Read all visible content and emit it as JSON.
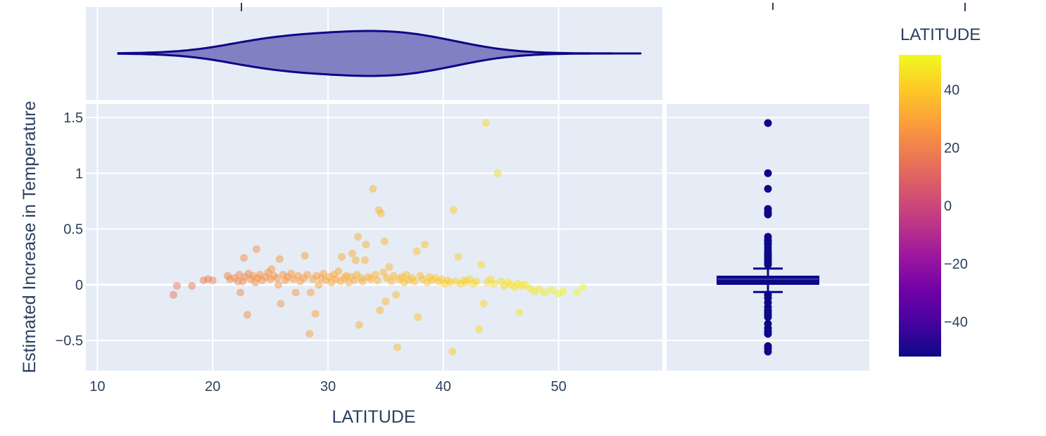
{
  "chart_data": {
    "type": "scatter",
    "xlabel": "LATITUDE",
    "ylabel": "Estimated Increase in Temperature",
    "xlim": [
      9,
      59
    ],
    "ylim": [
      -0.77,
      1.62
    ],
    "x_ticks": [
      10,
      20,
      30,
      40,
      50
    ],
    "y_ticks": [
      -0.5,
      0,
      0.5,
      1,
      1.5
    ],
    "y_tick_labels": [
      "−0.5",
      "0",
      "0.5",
      "1",
      "1.5"
    ],
    "grid": true,
    "marker_opacity": 0.5,
    "points": [
      {
        "x": 16.6,
        "y": -0.09
      },
      {
        "x": 16.9,
        "y": -0.01
      },
      {
        "x": 18.2,
        "y": -0.01
      },
      {
        "x": 19.2,
        "y": 0.04
      },
      {
        "x": 19.6,
        "y": 0.05
      },
      {
        "x": 20.0,
        "y": 0.04
      },
      {
        "x": 21.3,
        "y": 0.08
      },
      {
        "x": 21.5,
        "y": 0.05
      },
      {
        "x": 21.9,
        "y": 0.06
      },
      {
        "x": 22.2,
        "y": 0.03
      },
      {
        "x": 22.3,
        "y": 0.09
      },
      {
        "x": 22.4,
        "y": -0.07
      },
      {
        "x": 22.6,
        "y": 0.03
      },
      {
        "x": 22.7,
        "y": 0.24
      },
      {
        "x": 22.8,
        "y": 0.07
      },
      {
        "x": 23.0,
        "y": -0.27
      },
      {
        "x": 23.1,
        "y": 0.1
      },
      {
        "x": 23.3,
        "y": 0.05
      },
      {
        "x": 23.5,
        "y": 0.08
      },
      {
        "x": 23.7,
        "y": 0.02
      },
      {
        "x": 23.8,
        "y": 0.32
      },
      {
        "x": 23.9,
        "y": 0.06
      },
      {
        "x": 24.1,
        "y": 0.09
      },
      {
        "x": 24.3,
        "y": 0.04
      },
      {
        "x": 24.6,
        "y": 0.07
      },
      {
        "x": 24.8,
        "y": 0.11
      },
      {
        "x": 25.0,
        "y": 0.05
      },
      {
        "x": 25.1,
        "y": 0.14
      },
      {
        "x": 25.3,
        "y": 0.08
      },
      {
        "x": 25.6,
        "y": 0.06
      },
      {
        "x": 25.7,
        "y": 0.0
      },
      {
        "x": 25.8,
        "y": 0.23
      },
      {
        "x": 25.9,
        "y": -0.17
      },
      {
        "x": 26.1,
        "y": 0.09
      },
      {
        "x": 26.3,
        "y": 0.04
      },
      {
        "x": 26.5,
        "y": 0.07
      },
      {
        "x": 26.8,
        "y": 0.1
      },
      {
        "x": 27.0,
        "y": 0.05
      },
      {
        "x": 27.2,
        "y": -0.07
      },
      {
        "x": 27.4,
        "y": 0.08
      },
      {
        "x": 27.6,
        "y": 0.03
      },
      {
        "x": 27.9,
        "y": 0.06
      },
      {
        "x": 28.0,
        "y": 0.26
      },
      {
        "x": 28.2,
        "y": 0.09
      },
      {
        "x": 28.4,
        "y": -0.44
      },
      {
        "x": 28.5,
        "y": -0.07
      },
      {
        "x": 28.7,
        "y": 0.05
      },
      {
        "x": 28.9,
        "y": -0.26
      },
      {
        "x": 29.0,
        "y": 0.08
      },
      {
        "x": 29.2,
        "y": 0.0
      },
      {
        "x": 29.4,
        "y": 0.06
      },
      {
        "x": 29.6,
        "y": 0.1
      },
      {
        "x": 29.8,
        "y": 0.04
      },
      {
        "x": 30.1,
        "y": 0.07
      },
      {
        "x": 30.3,
        "y": 0.02
      },
      {
        "x": 30.5,
        "y": 0.09
      },
      {
        "x": 30.7,
        "y": 0.05
      },
      {
        "x": 30.9,
        "y": 0.12
      },
      {
        "x": 31.1,
        "y": 0.03
      },
      {
        "x": 31.2,
        "y": 0.25
      },
      {
        "x": 31.4,
        "y": 0.06
      },
      {
        "x": 31.6,
        "y": 0.08
      },
      {
        "x": 31.8,
        "y": 0.02
      },
      {
        "x": 32.0,
        "y": 0.07
      },
      {
        "x": 32.1,
        "y": 0.28
      },
      {
        "x": 32.3,
        "y": 0.04
      },
      {
        "x": 32.4,
        "y": 0.22
      },
      {
        "x": 32.5,
        "y": 0.09
      },
      {
        "x": 32.6,
        "y": 0.43
      },
      {
        "x": 32.7,
        "y": -0.36
      },
      {
        "x": 32.9,
        "y": 0.06
      },
      {
        "x": 33.0,
        "y": 0.03
      },
      {
        "x": 33.2,
        "y": 0.22
      },
      {
        "x": 33.3,
        "y": 0.36
      },
      {
        "x": 33.5,
        "y": 0.07
      },
      {
        "x": 33.7,
        "y": 0.05
      },
      {
        "x": 33.9,
        "y": 0.86
      },
      {
        "x": 34.1,
        "y": 0.09
      },
      {
        "x": 34.3,
        "y": 0.04
      },
      {
        "x": 34.4,
        "y": 0.67
      },
      {
        "x": 34.5,
        "y": -0.23
      },
      {
        "x": 34.6,
        "y": 0.64
      },
      {
        "x": 34.8,
        "y": 0.11
      },
      {
        "x": 34.9,
        "y": 0.39
      },
      {
        "x": 35.0,
        "y": -0.15
      },
      {
        "x": 35.1,
        "y": 0.06
      },
      {
        "x": 35.3,
        "y": 0.16
      },
      {
        "x": 35.5,
        "y": 0.03
      },
      {
        "x": 35.7,
        "y": 0.08
      },
      {
        "x": 35.9,
        "y": -0.09
      },
      {
        "x": 36.0,
        "y": -0.56
      },
      {
        "x": 36.2,
        "y": 0.05
      },
      {
        "x": 36.4,
        "y": 0.07
      },
      {
        "x": 36.6,
        "y": 0.02
      },
      {
        "x": 36.8,
        "y": 0.09
      },
      {
        "x": 37.0,
        "y": 0.04
      },
      {
        "x": 37.3,
        "y": 0.06
      },
      {
        "x": 37.5,
        "y": 0.03
      },
      {
        "x": 37.7,
        "y": 0.3
      },
      {
        "x": 37.8,
        "y": -0.29
      },
      {
        "x": 38.0,
        "y": 0.08
      },
      {
        "x": 38.2,
        "y": 0.05
      },
      {
        "x": 38.4,
        "y": 0.36
      },
      {
        "x": 38.6,
        "y": 0.02
      },
      {
        "x": 38.8,
        "y": 0.07
      },
      {
        "x": 39.0,
        "y": 0.04
      },
      {
        "x": 39.3,
        "y": 0.06
      },
      {
        "x": 39.6,
        "y": 0.03
      },
      {
        "x": 39.9,
        "y": 0.05
      },
      {
        "x": 40.1,
        "y": 0.01
      },
      {
        "x": 40.4,
        "y": 0.04
      },
      {
        "x": 40.6,
        "y": 0.02
      },
      {
        "x": 40.9,
        "y": 0.67
      },
      {
        "x": 40.8,
        "y": -0.6
      },
      {
        "x": 41.1,
        "y": 0.03
      },
      {
        "x": 41.3,
        "y": 0.25
      },
      {
        "x": 41.5,
        "y": 0.01
      },
      {
        "x": 41.8,
        "y": 0.04
      },
      {
        "x": 42.0,
        "y": 0.02
      },
      {
        "x": 42.3,
        "y": 0.05
      },
      {
        "x": 42.6,
        "y": 0.01
      },
      {
        "x": 42.9,
        "y": 0.03
      },
      {
        "x": 43.1,
        "y": -0.4
      },
      {
        "x": 43.3,
        "y": 0.18
      },
      {
        "x": 43.5,
        "y": -0.17
      },
      {
        "x": 43.7,
        "y": 1.45
      },
      {
        "x": 43.8,
        "y": 0.02
      },
      {
        "x": 44.1,
        "y": 0.05
      },
      {
        "x": 44.4,
        "y": 0.01
      },
      {
        "x": 44.7,
        "y": 1.0
      },
      {
        "x": 45.0,
        "y": 0.03
      },
      {
        "x": 45.3,
        "y": -0.01
      },
      {
        "x": 45.6,
        "y": 0.02
      },
      {
        "x": 45.9,
        "y": 0.0
      },
      {
        "x": 46.2,
        "y": -0.02
      },
      {
        "x": 46.5,
        "y": 0.01
      },
      {
        "x": 46.6,
        "y": -0.25
      },
      {
        "x": 46.8,
        "y": -0.01
      },
      {
        "x": 47.1,
        "y": 0.0
      },
      {
        "x": 47.5,
        "y": -0.03
      },
      {
        "x": 47.9,
        "y": -0.06
      },
      {
        "x": 48.3,
        "y": -0.04
      },
      {
        "x": 48.8,
        "y": -0.07
      },
      {
        "x": 49.4,
        "y": -0.05
      },
      {
        "x": 50.0,
        "y": -0.08
      },
      {
        "x": 50.4,
        "y": -0.06
      },
      {
        "x": 51.6,
        "y": -0.07
      },
      {
        "x": 52.1,
        "y": -0.02
      }
    ],
    "marginal_x": {
      "type": "violin",
      "orientation": "horizontal",
      "x_min": 11.8,
      "x_max": 57.1,
      "fill_color": "#7a7ac0",
      "line_color": "#0d0887"
    },
    "marginal_y": {
      "type": "box",
      "fill_color": "#0d0887",
      "q1": 0.005,
      "median": 0.05,
      "q3": 0.075,
      "whisker_low": -0.065,
      "whisker_high": 0.145,
      "outliers": [
        1.45,
        1.0,
        0.86,
        0.68,
        0.65,
        0.63,
        0.43,
        0.4,
        0.38,
        0.36,
        0.33,
        0.3,
        0.28,
        0.26,
        0.24,
        0.22,
        0.2,
        0.18,
        -0.09,
        -0.12,
        -0.16,
        -0.2,
        -0.23,
        -0.25,
        -0.27,
        -0.29,
        -0.35,
        -0.39,
        -0.42,
        -0.44,
        -0.55,
        -0.57,
        -0.6
      ]
    },
    "colorbar": {
      "title": "LATITUDE",
      "range": [
        -52,
        52
      ],
      "ticks": [
        40,
        20,
        0,
        -20,
        -40
      ],
      "tick_labels": [
        "40",
        "20",
        "0",
        "−20",
        "−40"
      ],
      "colors": [
        "#0d0887",
        "#46039f",
        "#7201a8",
        "#9c179e",
        "#bd3786",
        "#d8576b",
        "#ed7953",
        "#fb9f3a",
        "#fdca26",
        "#f0f921"
      ]
    }
  }
}
